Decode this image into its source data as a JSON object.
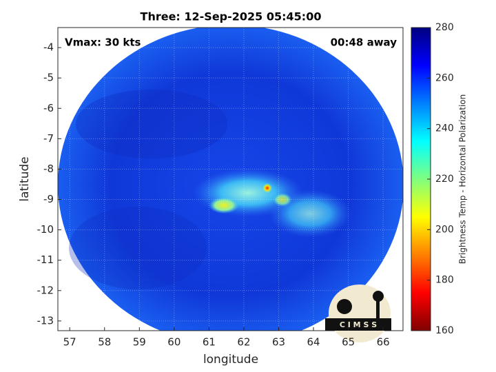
{
  "chart_data": {
    "type": "heatmap",
    "title": "Three: 12-Sep-2025 05:45:00",
    "annotations": [
      "Vmax: 30 kts",
      "00:48 away"
    ],
    "xlabel": "longitude",
    "ylabel": "latitude",
    "xlim": [
      56.66,
      66.57
    ],
    "ylim": [
      -13.32,
      -3.34
    ],
    "xticks": [
      57,
      58,
      59,
      60,
      61,
      62,
      63,
      64,
      65,
      66
    ],
    "yticks": [
      -13,
      -12,
      -11,
      -10,
      -9,
      -8,
      -7,
      -6,
      -5,
      -4
    ],
    "grid": true,
    "colorbar": {
      "label": "Brightness Temp - Horizontal Polarization",
      "lim": [
        160,
        280
      ],
      "ticks": [
        160,
        180,
        200,
        220,
        240,
        260,
        280
      ]
    },
    "logo": "C I M S S"
  }
}
